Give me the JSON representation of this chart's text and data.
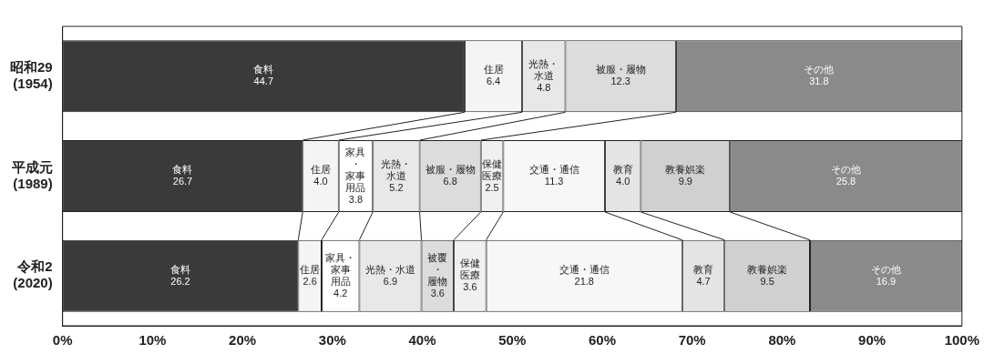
{
  "chart_data": {
    "type": "bar",
    "orientation": "horizontal",
    "stacked": true,
    "categories": [
      "昭和29\n(1954)",
      "平成元\n(1989)",
      "令和2\n(2020)"
    ],
    "series": [
      {
        "color": "#3a3a3a",
        "values": [
          44.7,
          26.7,
          26.2
        ],
        "value_labels": [
          "食料\n44.7",
          "食料\n26.7",
          "食料\n26.2"
        ]
      },
      {
        "color": "#f4f4f4",
        "values": [
          6.4,
          4.0,
          2.6
        ],
        "value_labels": [
          "住居\n6.4",
          "住居\n4.0",
          "住居\n2.6"
        ]
      },
      {
        "color": "#ffffff",
        "values": [
          null,
          3.8,
          4.2
        ],
        "value_labels": [
          null,
          "家具・家事用品\n3.8",
          "家具・家事用品\n4.2"
        ]
      },
      {
        "color": "#e8e8e8",
        "values": [
          4.8,
          5.2,
          6.9
        ],
        "value_labels": [
          "光熱・水道\n4.8",
          "光熱・水道\n5.2",
          "光熱・水道\n6.9"
        ]
      },
      {
        "color": "#dcdcdc",
        "values": [
          12.3,
          6.8,
          3.6
        ],
        "value_labels": [
          "被服・履物\n12.3",
          "被服・履物\n6.8",
          "被覆・履物\n3.6"
        ]
      },
      {
        "color": "#f0f0f0",
        "values": [
          null,
          2.5,
          3.6
        ],
        "value_labels": [
          null,
          "保健医療\n2.5",
          "保健医療\n3.6"
        ]
      },
      {
        "color": "#f7f7f7",
        "values": [
          null,
          11.3,
          21.8
        ],
        "value_labels": [
          null,
          "交通・通信\n11.3",
          "交通・通信\n21.8"
        ]
      },
      {
        "color": "#e4e4e4",
        "values": [
          null,
          4.0,
          4.7
        ],
        "value_labels": [
          null,
          "教育\n4.0",
          "教育\n4.7"
        ]
      },
      {
        "color": "#d0d0d0",
        "values": [
          null,
          9.9,
          9.5
        ],
        "value_labels": [
          null,
          "教養娯楽\n9.9",
          "教養娯楽\n9.5"
        ]
      },
      {
        "color": "#8a8a8a",
        "values": [
          31.8,
          25.8,
          16.9
        ],
        "value_labels": [
          "その他\n31.8",
          "その他\n25.8",
          "その他\n16.9"
        ]
      }
    ],
    "xlim": [
      0,
      100
    ],
    "xticks": [
      {
        "value": 0,
        "label": "0%"
      },
      {
        "value": 10,
        "label": "10%"
      },
      {
        "value": 20,
        "label": "20%"
      },
      {
        "value": 30,
        "label": "30%"
      },
      {
        "value": 40,
        "label": "40%"
      },
      {
        "value": 50,
        "label": "50%"
      },
      {
        "value": 60,
        "label": "60%"
      },
      {
        "value": 70,
        "label": "70%"
      },
      {
        "value": 80,
        "label": "80%"
      },
      {
        "value": 90,
        "label": "90%"
      },
      {
        "value": 100,
        "label": "100%"
      }
    ],
    "grid": false,
    "legend": false
  }
}
